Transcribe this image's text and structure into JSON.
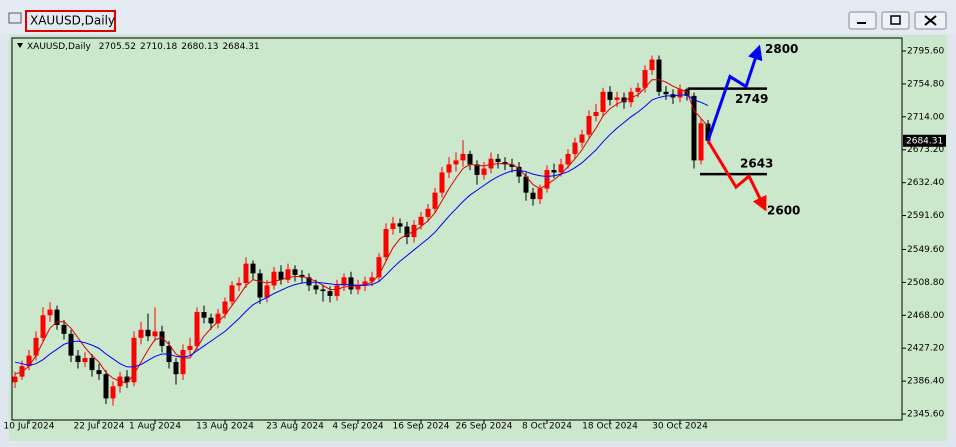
{
  "chart_data": {
    "type": "candlestick",
    "title": "XAUUSD,Daily",
    "categories": [
      null,
      null,
      "10 Jul 2024",
      null,
      null,
      null,
      null,
      null,
      null,
      null,
      null,
      null,
      "22 Jul 2024",
      null,
      null,
      null,
      null,
      null,
      null,
      null,
      "1 Aug 2024",
      null,
      null,
      null,
      null,
      null,
      null,
      null,
      null,
      null,
      "13 Aug 2024",
      null,
      null,
      null,
      null,
      null,
      null,
      null,
      null,
      null,
      "23 Aug 2024",
      null,
      null,
      null,
      null,
      null,
      null,
      null,
      null,
      "4 Sep 2024",
      null,
      null,
      null,
      null,
      null,
      null,
      null,
      null,
      "16 Sep 2024",
      null,
      null,
      null,
      null,
      null,
      null,
      null,
      null,
      "26 Sep 2024",
      null,
      null,
      null,
      null,
      null,
      null,
      null,
      null,
      "8 Oct 2024",
      null,
      null,
      null,
      null,
      null,
      null,
      null,
      null,
      "18 Oct 2024",
      null,
      null,
      null,
      null,
      null,
      null,
      null,
      null,
      null,
      "30 Oct 2024",
      null,
      null,
      null,
      null
    ],
    "open": [
      2385,
      2392,
      2405,
      2418,
      2440,
      2468,
      2475,
      2456,
      2445,
      2418,
      2410,
      2415,
      2400,
      2395,
      2365,
      2380,
      2392,
      2385,
      2440,
      2450,
      2442,
      2448,
      2430,
      2410,
      2395,
      2425,
      2430,
      2472,
      2465,
      2458,
      2470,
      2485,
      2505,
      2508,
      2532,
      2520,
      2490,
      2505,
      2522,
      2512,
      2525,
      2518,
      2515,
      2505,
      2500,
      2498,
      2492,
      2505,
      2515,
      2500,
      2505,
      2510,
      2515,
      2540,
      2575,
      2582,
      2578,
      2565,
      2580,
      2590,
      2600,
      2620,
      2645,
      2655,
      2660,
      2668,
      2655,
      2642,
      2650,
      2662,
      2658,
      2655,
      2652,
      2640,
      2620,
      2612,
      2625,
      2648,
      2645,
      2655,
      2668,
      2682,
      2692,
      2715,
      2720,
      2745,
      2735,
      2738,
      2732,
      2745,
      2750,
      2772,
      2785,
      2745,
      2742,
      2738,
      2748,
      2740,
      2660,
      2705.52
    ],
    "high": [
      2398,
      2412,
      2425,
      2448,
      2478,
      2484,
      2480,
      2462,
      2450,
      2425,
      2422,
      2420,
      2408,
      2400,
      2386,
      2398,
      2400,
      2448,
      2460,
      2470,
      2478,
      2455,
      2436,
      2415,
      2432,
      2440,
      2478,
      2480,
      2470,
      2476,
      2490,
      2510,
      2515,
      2540,
      2536,
      2525,
      2512,
      2528,
      2530,
      2532,
      2530,
      2524,
      2520,
      2512,
      2506,
      2504,
      2512,
      2520,
      2522,
      2512,
      2516,
      2522,
      2545,
      2582,
      2590,
      2588,
      2584,
      2586,
      2596,
      2606,
      2626,
      2652,
      2664,
      2670,
      2685,
      2672,
      2660,
      2658,
      2670,
      2668,
      2664,
      2662,
      2658,
      2645,
      2626,
      2630,
      2654,
      2656,
      2662,
      2674,
      2688,
      2698,
      2722,
      2730,
      2750,
      2752,
      2745,
      2744,
      2750,
      2756,
      2778,
      2790,
      2790,
      2752,
      2748,
      2754,
      2750,
      2744,
      2712,
      2710.18
    ],
    "low": [
      2378,
      2388,
      2400,
      2412,
      2435,
      2460,
      2450,
      2438,
      2410,
      2402,
      2404,
      2392,
      2388,
      2358,
      2356,
      2372,
      2378,
      2380,
      2432,
      2436,
      2436,
      2422,
      2402,
      2382,
      2388,
      2418,
      2425,
      2458,
      2450,
      2452,
      2464,
      2480,
      2498,
      2502,
      2512,
      2482,
      2484,
      2500,
      2506,
      2508,
      2510,
      2508,
      2498,
      2494,
      2485,
      2484,
      2486,
      2498,
      2494,
      2494,
      2498,
      2504,
      2510,
      2535,
      2568,
      2570,
      2556,
      2558,
      2574,
      2584,
      2595,
      2614,
      2638,
      2646,
      2652,
      2648,
      2630,
      2636,
      2644,
      2650,
      2648,
      2645,
      2632,
      2610,
      2604,
      2606,
      2620,
      2638,
      2640,
      2650,
      2662,
      2676,
      2688,
      2708,
      2714,
      2728,
      2726,
      2724,
      2726,
      2738,
      2744,
      2766,
      2740,
      2735,
      2730,
      2732,
      2734,
      2650,
      2655,
      2680.13
    ],
    "close": [
      2392,
      2405,
      2418,
      2440,
      2468,
      2475,
      2456,
      2445,
      2418,
      2410,
      2415,
      2400,
      2395,
      2365,
      2380,
      2392,
      2385,
      2440,
      2450,
      2442,
      2448,
      2430,
      2410,
      2395,
      2425,
      2430,
      2472,
      2465,
      2458,
      2470,
      2485,
      2505,
      2508,
      2532,
      2520,
      2490,
      2505,
      2522,
      2512,
      2525,
      2518,
      2515,
      2505,
      2500,
      2498,
      2492,
      2505,
      2515,
      2500,
      2505,
      2510,
      2515,
      2540,
      2575,
      2582,
      2578,
      2565,
      2580,
      2590,
      2600,
      2620,
      2645,
      2655,
      2660,
      2668,
      2655,
      2642,
      2650,
      2662,
      2658,
      2655,
      2652,
      2640,
      2620,
      2612,
      2625,
      2648,
      2645,
      2655,
      2668,
      2682,
      2692,
      2715,
      2720,
      2745,
      2735,
      2738,
      2732,
      2745,
      2750,
      2772,
      2785,
      2745,
      2742,
      2738,
      2748,
      2740,
      2660,
      2706,
      2684.31
    ],
    "up_color": "#ff0000",
    "down_color": "#000000",
    "lines": [
      {
        "color": "#e00000",
        "values": [
          2395,
          2398,
          2405,
          2418,
          2435,
          2452,
          2460,
          2460,
          2452,
          2440,
          2428,
          2418,
          2410,
          2397,
          2390,
          2386,
          2384,
          2395,
          2410,
          2425,
          2438,
          2440,
          2432,
          2420,
          2415,
          2415,
          2428,
          2442,
          2452,
          2460,
          2468,
          2480,
          2492,
          2505,
          2512,
          2510,
          2508,
          2510,
          2512,
          2515,
          2516,
          2516,
          2514,
          2510,
          2505,
          2500,
          2500,
          2503,
          2504,
          2505,
          2506,
          2509,
          2518,
          2535,
          2552,
          2563,
          2568,
          2572,
          2578,
          2585,
          2595,
          2610,
          2625,
          2638,
          2650,
          2655,
          2654,
          2653,
          2655,
          2656,
          2656,
          2655,
          2650,
          2640,
          2630,
          2625,
          2630,
          2636,
          2643,
          2652,
          2662,
          2673,
          2687,
          2700,
          2715,
          2724,
          2730,
          2734,
          2738,
          2741,
          2750,
          2760,
          2760,
          2757,
          2752,
          2748,
          2745,
          2722,
          2712,
          2702
        ]
      },
      {
        "color": "#0000ff",
        "values": [
          2410,
          2408,
          2406,
          2408,
          2413,
          2420,
          2426,
          2432,
          2435,
          2436,
          2434,
          2431,
          2427,
          2420,
          2414,
          2408,
          2404,
          2404,
          2407,
          2412,
          2417,
          2420,
          2420,
          2417,
          2416,
          2418,
          2424,
          2430,
          2436,
          2442,
          2448,
          2456,
          2464,
          2473,
          2481,
          2486,
          2490,
          2495,
          2499,
          2503,
          2506,
          2508,
          2509,
          2509,
          2508,
          2507,
          2506,
          2506,
          2506,
          2505,
          2505,
          2506,
          2510,
          2518,
          2527,
          2535,
          2542,
          2549,
          2556,
          2563,
          2571,
          2581,
          2591,
          2600,
          2609,
          2617,
          2623,
          2629,
          2635,
          2640,
          2644,
          2647,
          2648,
          2646,
          2643,
          2641,
          2640,
          2641,
          2643,
          2646,
          2651,
          2657,
          2665,
          2673,
          2683,
          2692,
          2700,
          2707,
          2714,
          2720,
          2727,
          2735,
          2738,
          2740,
          2740,
          2741,
          2741,
          2735,
          2732,
          2728
        ]
      }
    ],
    "ylim": [
      2338.2,
      2811.7
    ],
    "yticks": [
      {
        "value": 2795.6,
        "label": "2795.60"
      },
      {
        "value": 2754.8,
        "label": "2754.80"
      },
      {
        "value": 2714,
        "label": "2714.00"
      },
      {
        "value": 2673.2,
        "label": "2673.20"
      },
      {
        "value": 2632.4,
        "label": "2632.40"
      },
      {
        "value": 2591.6,
        "label": "2591.60"
      },
      {
        "value": 2549.6,
        "label": "2549.60"
      },
      {
        "value": 2508.8,
        "label": "2508.80"
      },
      {
        "value": 2468,
        "label": "2468.00"
      },
      {
        "value": 2427.2,
        "label": "2427.20"
      },
      {
        "value": 2386.4,
        "label": "2386.40"
      },
      {
        "value": 2345.6,
        "label": "2345.60"
      }
    ],
    "levels": [
      2800,
      2749,
      2643,
      2600
    ],
    "up_target_color": "#0000ff",
    "down_target_color": "#ff0000"
  }
}
